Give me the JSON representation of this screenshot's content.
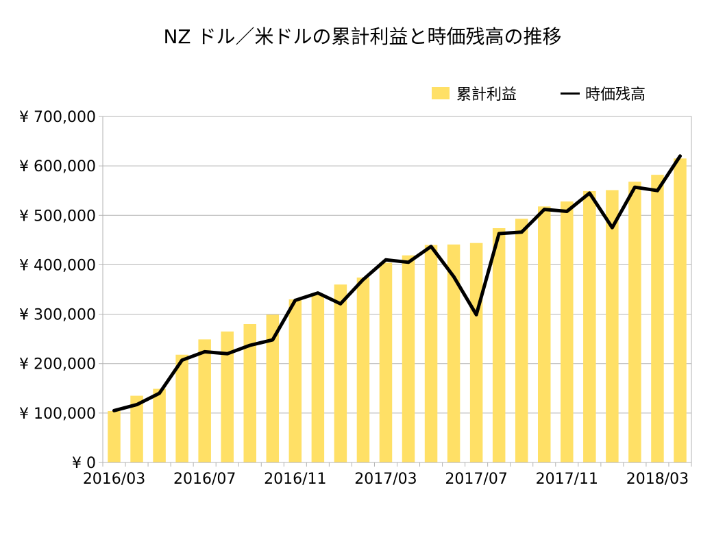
{
  "chart_data": {
    "type": "bar+line",
    "title": "NZ ドル／米ドルの累計利益と時価残高の推移",
    "categories": [
      "2016/03",
      "2016/04",
      "2016/05",
      "2016/06",
      "2016/07",
      "2016/08",
      "2016/09",
      "2016/10",
      "2016/11",
      "2016/12",
      "2017/01",
      "2017/02",
      "2017/03",
      "2017/04",
      "2017/05",
      "2017/06",
      "2017/07",
      "2017/08",
      "2017/09",
      "2017/10",
      "2017/11",
      "2017/12",
      "2018/01",
      "2018/02",
      "2018/03",
      "2018/04"
    ],
    "x_tick_labels": [
      "2016/03",
      "2016/07",
      "2016/11",
      "2017/03",
      "2017/07",
      "2017/11",
      "2018/03"
    ],
    "series": [
      {
        "name": "累計利益",
        "kind": "bar",
        "values": [
          104000,
          135000,
          149000,
          218000,
          249000,
          265000,
          280000,
          299000,
          330000,
          340000,
          360000,
          374000,
          404000,
          419000,
          440000,
          441000,
          444000,
          474000,
          493000,
          518000,
          528000,
          549000,
          551000,
          568000,
          582000,
          615000
        ]
      },
      {
        "name": "時価残高",
        "kind": "line",
        "values": [
          105000,
          117000,
          140000,
          207000,
          224000,
          220000,
          237000,
          248000,
          328000,
          343000,
          321000,
          370000,
          410000,
          405000,
          437000,
          376000,
          299000,
          463000,
          466000,
          512000,
          508000,
          545000,
          475000,
          557000,
          550000,
          620000
        ]
      }
    ],
    "y_tick_labels": [
      "¥ 0",
      "¥ 100,000",
      "¥ 200,000",
      "¥ 300,000",
      "¥ 400,000",
      "¥ 500,000",
      "¥ 600,000",
      "¥ 700,000"
    ],
    "ylim": [
      0,
      700000
    ],
    "grid": true,
    "legend_position": "top-right",
    "colors": {
      "bar": "#FFE066",
      "line": "#000000",
      "grid": "#B3B3B3"
    }
  }
}
